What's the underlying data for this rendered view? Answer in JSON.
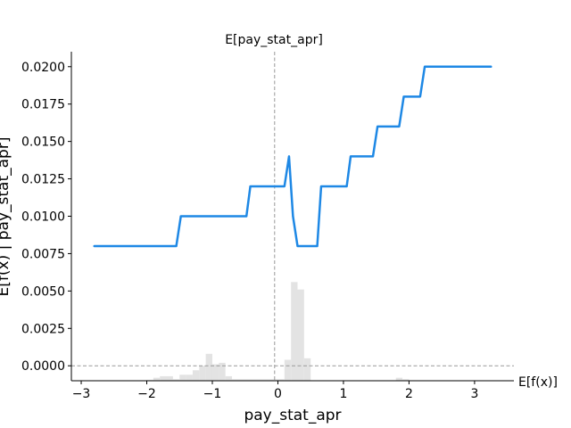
{
  "chart_data": {
    "type": "line",
    "top_label": "E[pay_stat_apr]",
    "xlabel": "pay_stat_apr",
    "ylabel": "E[f(x) | pay_stat_apr]",
    "right_label": "E[f(x)]",
    "xlim": [
      -3.15,
      3.6
    ],
    "ylim": [
      -0.001,
      0.021
    ],
    "x_ticks": [
      -3,
      -2,
      -1,
      0,
      1,
      2,
      3
    ],
    "x_tick_labels": [
      "−3",
      "−2",
      "−1",
      "0",
      "1",
      "2",
      "3"
    ],
    "y_ticks": [
      0.0,
      0.0025,
      0.005,
      0.0075,
      0.01,
      0.0125,
      0.015,
      0.0175,
      0.02
    ],
    "y_tick_labels": [
      "0.0000",
      "0.0025",
      "0.0050",
      "0.0075",
      "0.0100",
      "0.0125",
      "0.0150",
      "0.0175",
      "0.0200"
    ],
    "expected_value_x": -0.05,
    "expected_value_y": 0.0,
    "series": [
      {
        "x": [
          -2.8,
          -1.55,
          -1.48,
          -0.48,
          -0.42,
          0.1,
          0.17,
          0.23,
          0.3,
          0.6,
          0.66,
          1.05,
          1.11,
          1.45,
          1.52,
          1.85,
          1.92,
          2.17,
          2.24,
          3.25
        ],
        "y": [
          0.008,
          0.008,
          0.01,
          0.01,
          0.012,
          0.012,
          0.014,
          0.01,
          0.008,
          0.008,
          0.012,
          0.012,
          0.014,
          0.014,
          0.016,
          0.016,
          0.018,
          0.018,
          0.02,
          0.02
        ]
      }
    ],
    "histogram": {
      "bin_edges": [
        -2.0,
        -1.9,
        -1.8,
        -1.6,
        -1.5,
        -1.4,
        -1.3,
        -1.2,
        -1.1,
        -1.0,
        -0.9,
        -0.8,
        -0.7,
        0.1,
        0.2,
        0.3,
        0.4,
        0.5,
        1.8,
        1.9,
        2.0
      ],
      "values": [
        5e-05,
        0.0002,
        0.0003,
        0.0001,
        0.0004,
        0.0004,
        0.0007,
        0.001,
        0.0018,
        0.0011,
        0.0012,
        0.0003,
        0.0001,
        0.0014,
        0.0066,
        0.0061,
        0.0015,
        0.0,
        0.0002,
        0.0001
      ]
    },
    "colors": {
      "line": "#1e88e5",
      "histogram": "#e3e3e3",
      "reference": "#999999"
    }
  }
}
